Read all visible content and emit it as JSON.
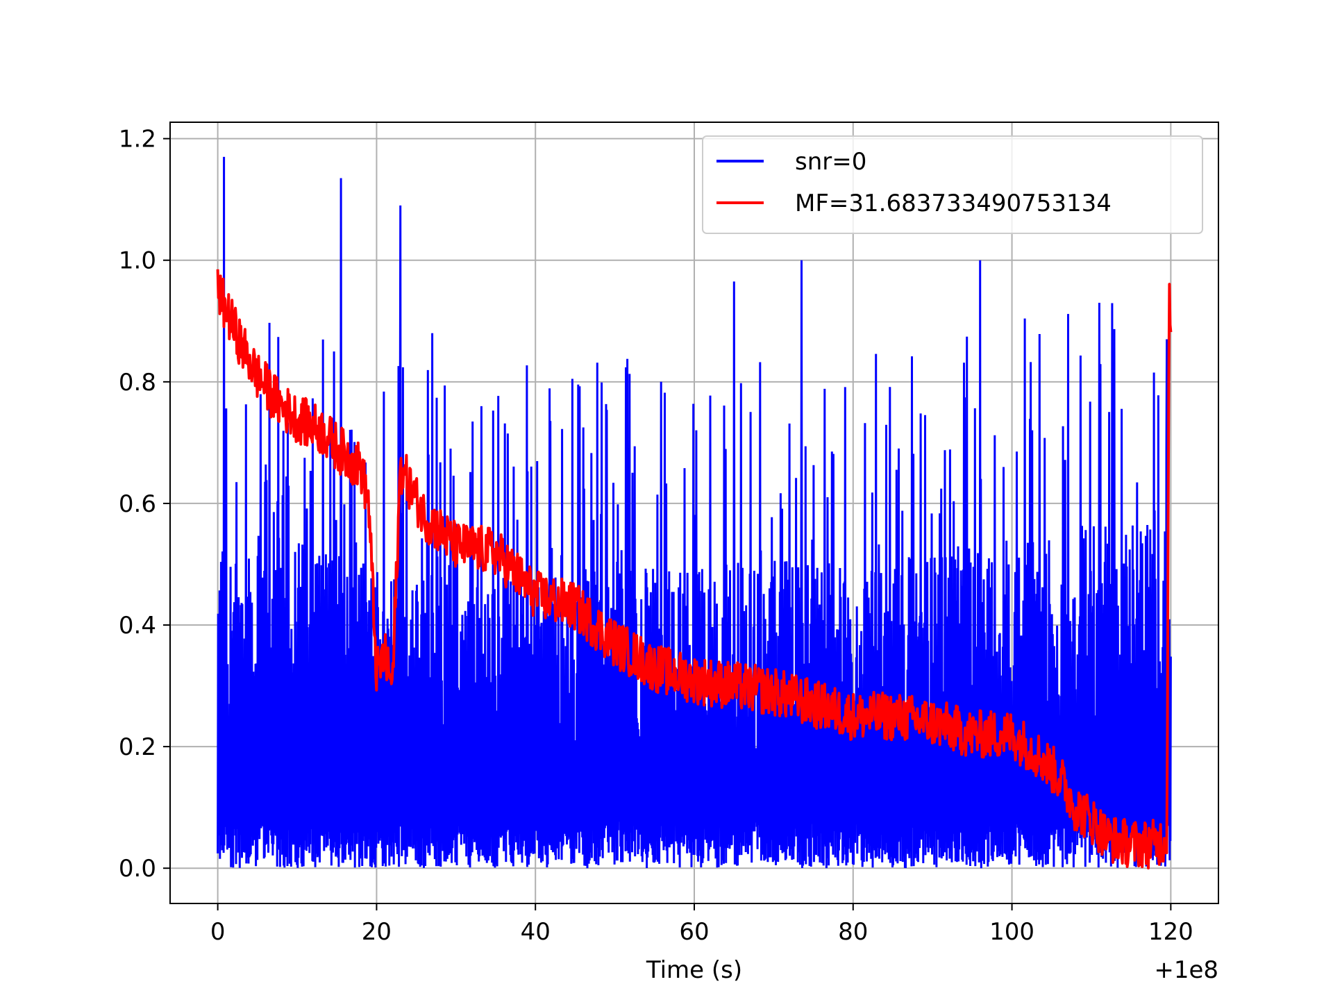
{
  "chart_data": {
    "type": "line",
    "title": "",
    "xlabel": "Time (s)",
    "ylabel": "",
    "x_offset_label": "+1e8",
    "xlim": [
      -6,
      126
    ],
    "ylim": [
      -0.058,
      1.227
    ],
    "xticks": [
      0,
      20,
      40,
      60,
      80,
      100,
      120
    ],
    "xtick_labels": [
      "0",
      "20",
      "40",
      "60",
      "80",
      "100",
      "120"
    ],
    "yticks": [
      0.0,
      0.2,
      0.4,
      0.6,
      0.8,
      1.0,
      1.2
    ],
    "ytick_labels": [
      "0.0",
      "0.2",
      "0.4",
      "0.6",
      "0.8",
      "1.0",
      "1.2"
    ],
    "grid": true,
    "legend_position": "top-right",
    "series": [
      {
        "name": "snr=0",
        "color": "#0000ff",
        "description": "dense noise",
        "x_range": [
          0,
          120
        ],
        "envelope_high": {
          "x": [
            0,
            10,
            20,
            30,
            40,
            50,
            60,
            70,
            80,
            90,
            100,
            110,
            120
          ],
          "y": [
            0.55,
            0.55,
            0.5,
            0.5,
            0.48,
            0.5,
            0.5,
            0.52,
            0.5,
            0.52,
            0.55,
            0.58,
            0.6
          ]
        },
        "floor": 0.0,
        "peaks": [
          {
            "x": 0.8,
            "y": 1.17
          },
          {
            "x": 15.5,
            "y": 1.135
          },
          {
            "x": 23.0,
            "y": 1.09
          },
          {
            "x": 27.0,
            "y": 0.88
          },
          {
            "x": 65.0,
            "y": 0.965
          },
          {
            "x": 73.5,
            "y": 1.0
          },
          {
            "x": 96.0,
            "y": 1.0
          },
          {
            "x": 111.0,
            "y": 0.93
          },
          {
            "x": 119.5,
            "y": 0.87
          }
        ]
      },
      {
        "name": "MF=31.683733490753134",
        "color": "#ff0000",
        "description": "moving filtered",
        "x": [
          0,
          1,
          3,
          5,
          8,
          10,
          13,
          16,
          18,
          19,
          20,
          21,
          22,
          23,
          26,
          30,
          35,
          40,
          45,
          50,
          55,
          60,
          65,
          70,
          75,
          80,
          85,
          90,
          95,
          100,
          103,
          106,
          108,
          110,
          112,
          115,
          118,
          119.5,
          119.8,
          120
        ],
        "y": [
          0.95,
          0.92,
          0.86,
          0.81,
          0.76,
          0.74,
          0.72,
          0.68,
          0.66,
          0.6,
          0.32,
          0.35,
          0.3,
          0.66,
          0.58,
          0.53,
          0.52,
          0.45,
          0.43,
          0.37,
          0.33,
          0.31,
          0.3,
          0.29,
          0.27,
          0.25,
          0.25,
          0.24,
          0.22,
          0.22,
          0.19,
          0.15,
          0.1,
          0.08,
          0.05,
          0.04,
          0.04,
          0.05,
          0.95,
          0.9
        ],
        "noise_amplitude": 0.04
      }
    ]
  }
}
